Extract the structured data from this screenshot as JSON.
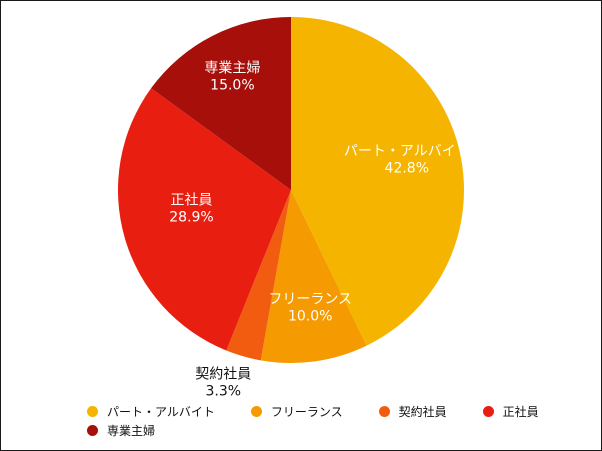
{
  "chart_data": {
    "type": "pie",
    "title": "",
    "legend_position": "bottom",
    "slices": [
      {
        "label": "パート・アルバイト",
        "value": 42.8,
        "value_label": "42.8%",
        "color": "#F5B400"
      },
      {
        "label": "フリーランス",
        "value": 10.0,
        "value_label": "10.0%",
        "color": "#F59A00"
      },
      {
        "label": "契約社員",
        "value": 3.3,
        "value_label": "3.3%",
        "color": "#F25C10"
      },
      {
        "label": "正社員",
        "value": 28.9,
        "value_label": "28.9%",
        "color": "#E81E10"
      },
      {
        "label": "専業主婦",
        "value": 15.0,
        "value_label": "15.0%",
        "color": "#A60F0A"
      }
    ]
  }
}
